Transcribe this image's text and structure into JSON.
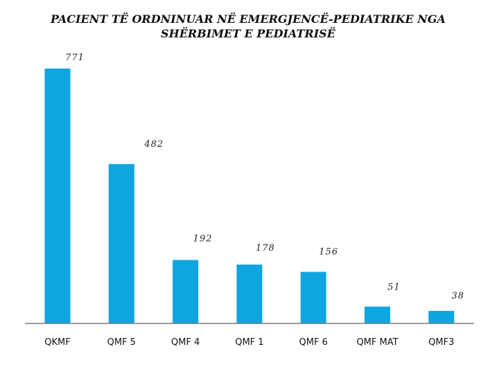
{
  "chart_data": {
    "type": "bar",
    "title": [
      "PACIENT TË ORDNINUAR NË EMERGJENCË-PEDIATRIKE NGA",
      "SHËRBIMET E PEDIATRISË"
    ],
    "categories": [
      "QKMF",
      "QMF 5",
      "QMF 4",
      "QMF 1",
      "QMF 6",
      "QMF MAT",
      "QMF3"
    ],
    "values": [
      771,
      482,
      192,
      178,
      156,
      51,
      38
    ],
    "value_labels": [
      "771",
      "482",
      "192",
      "178",
      "156",
      "51",
      "38"
    ],
    "xlabel": "",
    "ylabel": "",
    "ylim": [
      0,
      800
    ],
    "grid": false,
    "legend": "none",
    "colors": {
      "bar": "#0ea5e0",
      "axis": "#7a7a7a"
    }
  }
}
